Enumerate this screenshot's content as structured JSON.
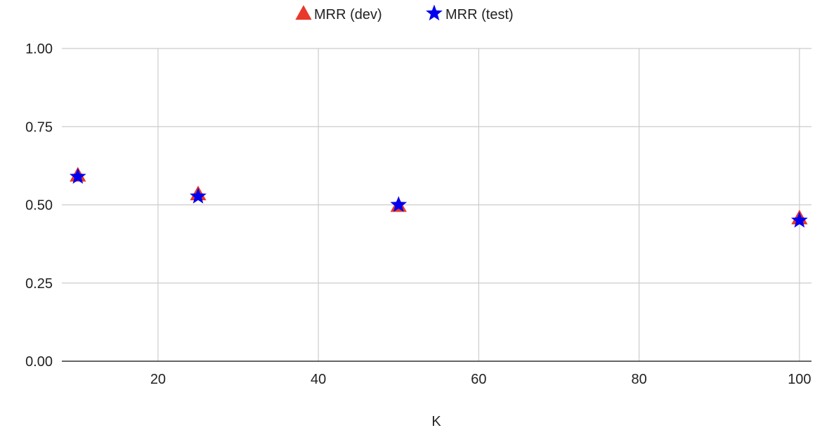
{
  "chart_data": {
    "type": "scatter",
    "title": "",
    "xlabel": "K",
    "ylabel": "",
    "xlim": [
      8,
      101.5
    ],
    "ylim": [
      0,
      1
    ],
    "x_ticks": [
      20,
      40,
      60,
      80,
      100
    ],
    "y_ticks": [
      0,
      0.25,
      0.5,
      0.75,
      1
    ],
    "x_tick_labels": [
      "20",
      "40",
      "60",
      "80",
      "100"
    ],
    "y_tick_labels": [
      "0.00",
      "0.25",
      "0.50",
      "0.75",
      "1.00"
    ],
    "grid": true,
    "legend_position": "top-center",
    "series": [
      {
        "name": "MRR (dev)",
        "marker": "triangle",
        "color": "#e8392b",
        "points": [
          {
            "x": 10,
            "y": 0.595
          },
          {
            "x": 25,
            "y": 0.535
          },
          {
            "x": 50,
            "y": 0.498
          },
          {
            "x": 100,
            "y": 0.458
          }
        ]
      },
      {
        "name": "MRR (test)",
        "marker": "star",
        "color": "#0000ee",
        "points": [
          {
            "x": 10,
            "y": 0.59
          },
          {
            "x": 25,
            "y": 0.527
          },
          {
            "x": 50,
            "y": 0.5
          },
          {
            "x": 100,
            "y": 0.45
          }
        ]
      }
    ]
  }
}
